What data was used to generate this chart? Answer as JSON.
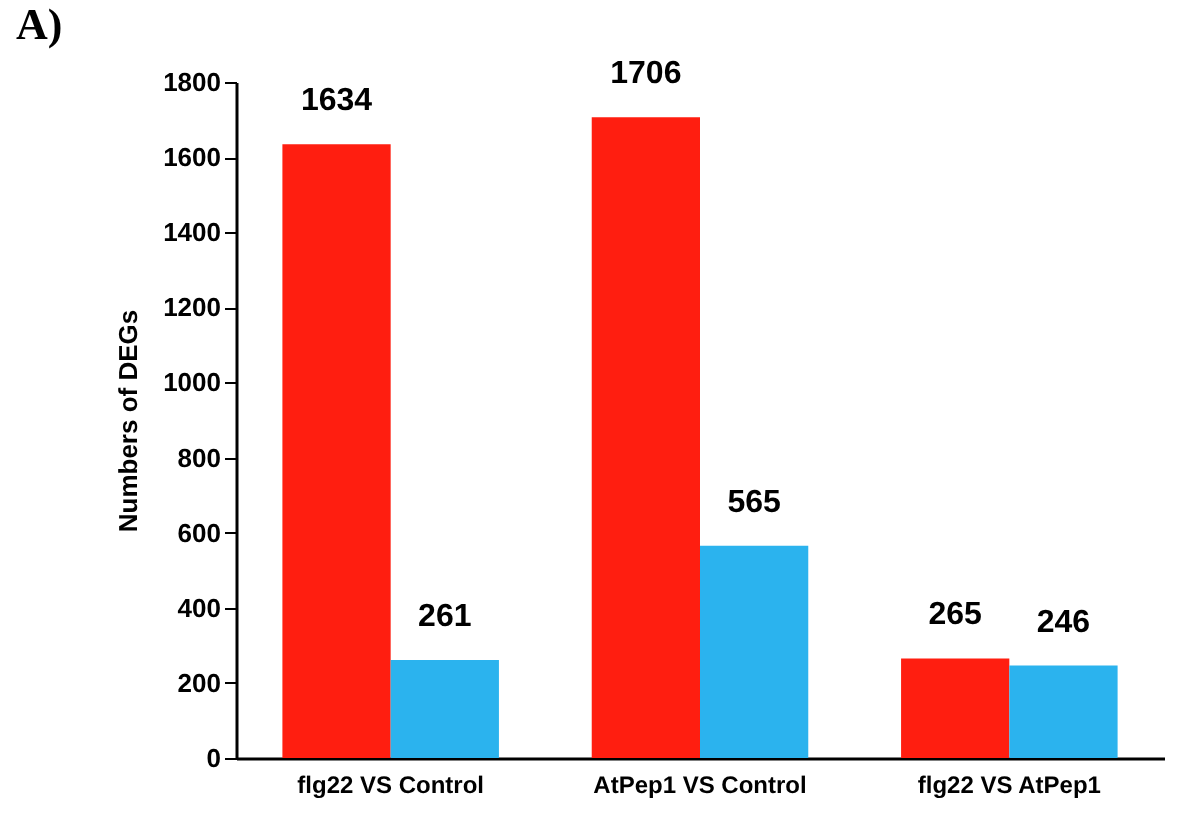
{
  "chart_data": {
    "type": "bar",
    "title": "A)",
    "ylabel": "Numbers of DEGs",
    "categories": [
      "flg22 VS Control",
      "AtPep1 VS Control",
      "flg22 VS AtPep1"
    ],
    "series": [
      {
        "color": "#ff1e10",
        "values": [
          1634,
          1706,
          265
        ]
      },
      {
        "color": "#2bb3ee",
        "values": [
          261,
          565,
          246
        ]
      }
    ],
    "ylim": [
      0,
      1800
    ],
    "yticks": [
      0,
      200,
      400,
      600,
      800,
      1000,
      1200,
      1400,
      1600,
      1800
    ],
    "data_labels": true,
    "grid": false
  }
}
